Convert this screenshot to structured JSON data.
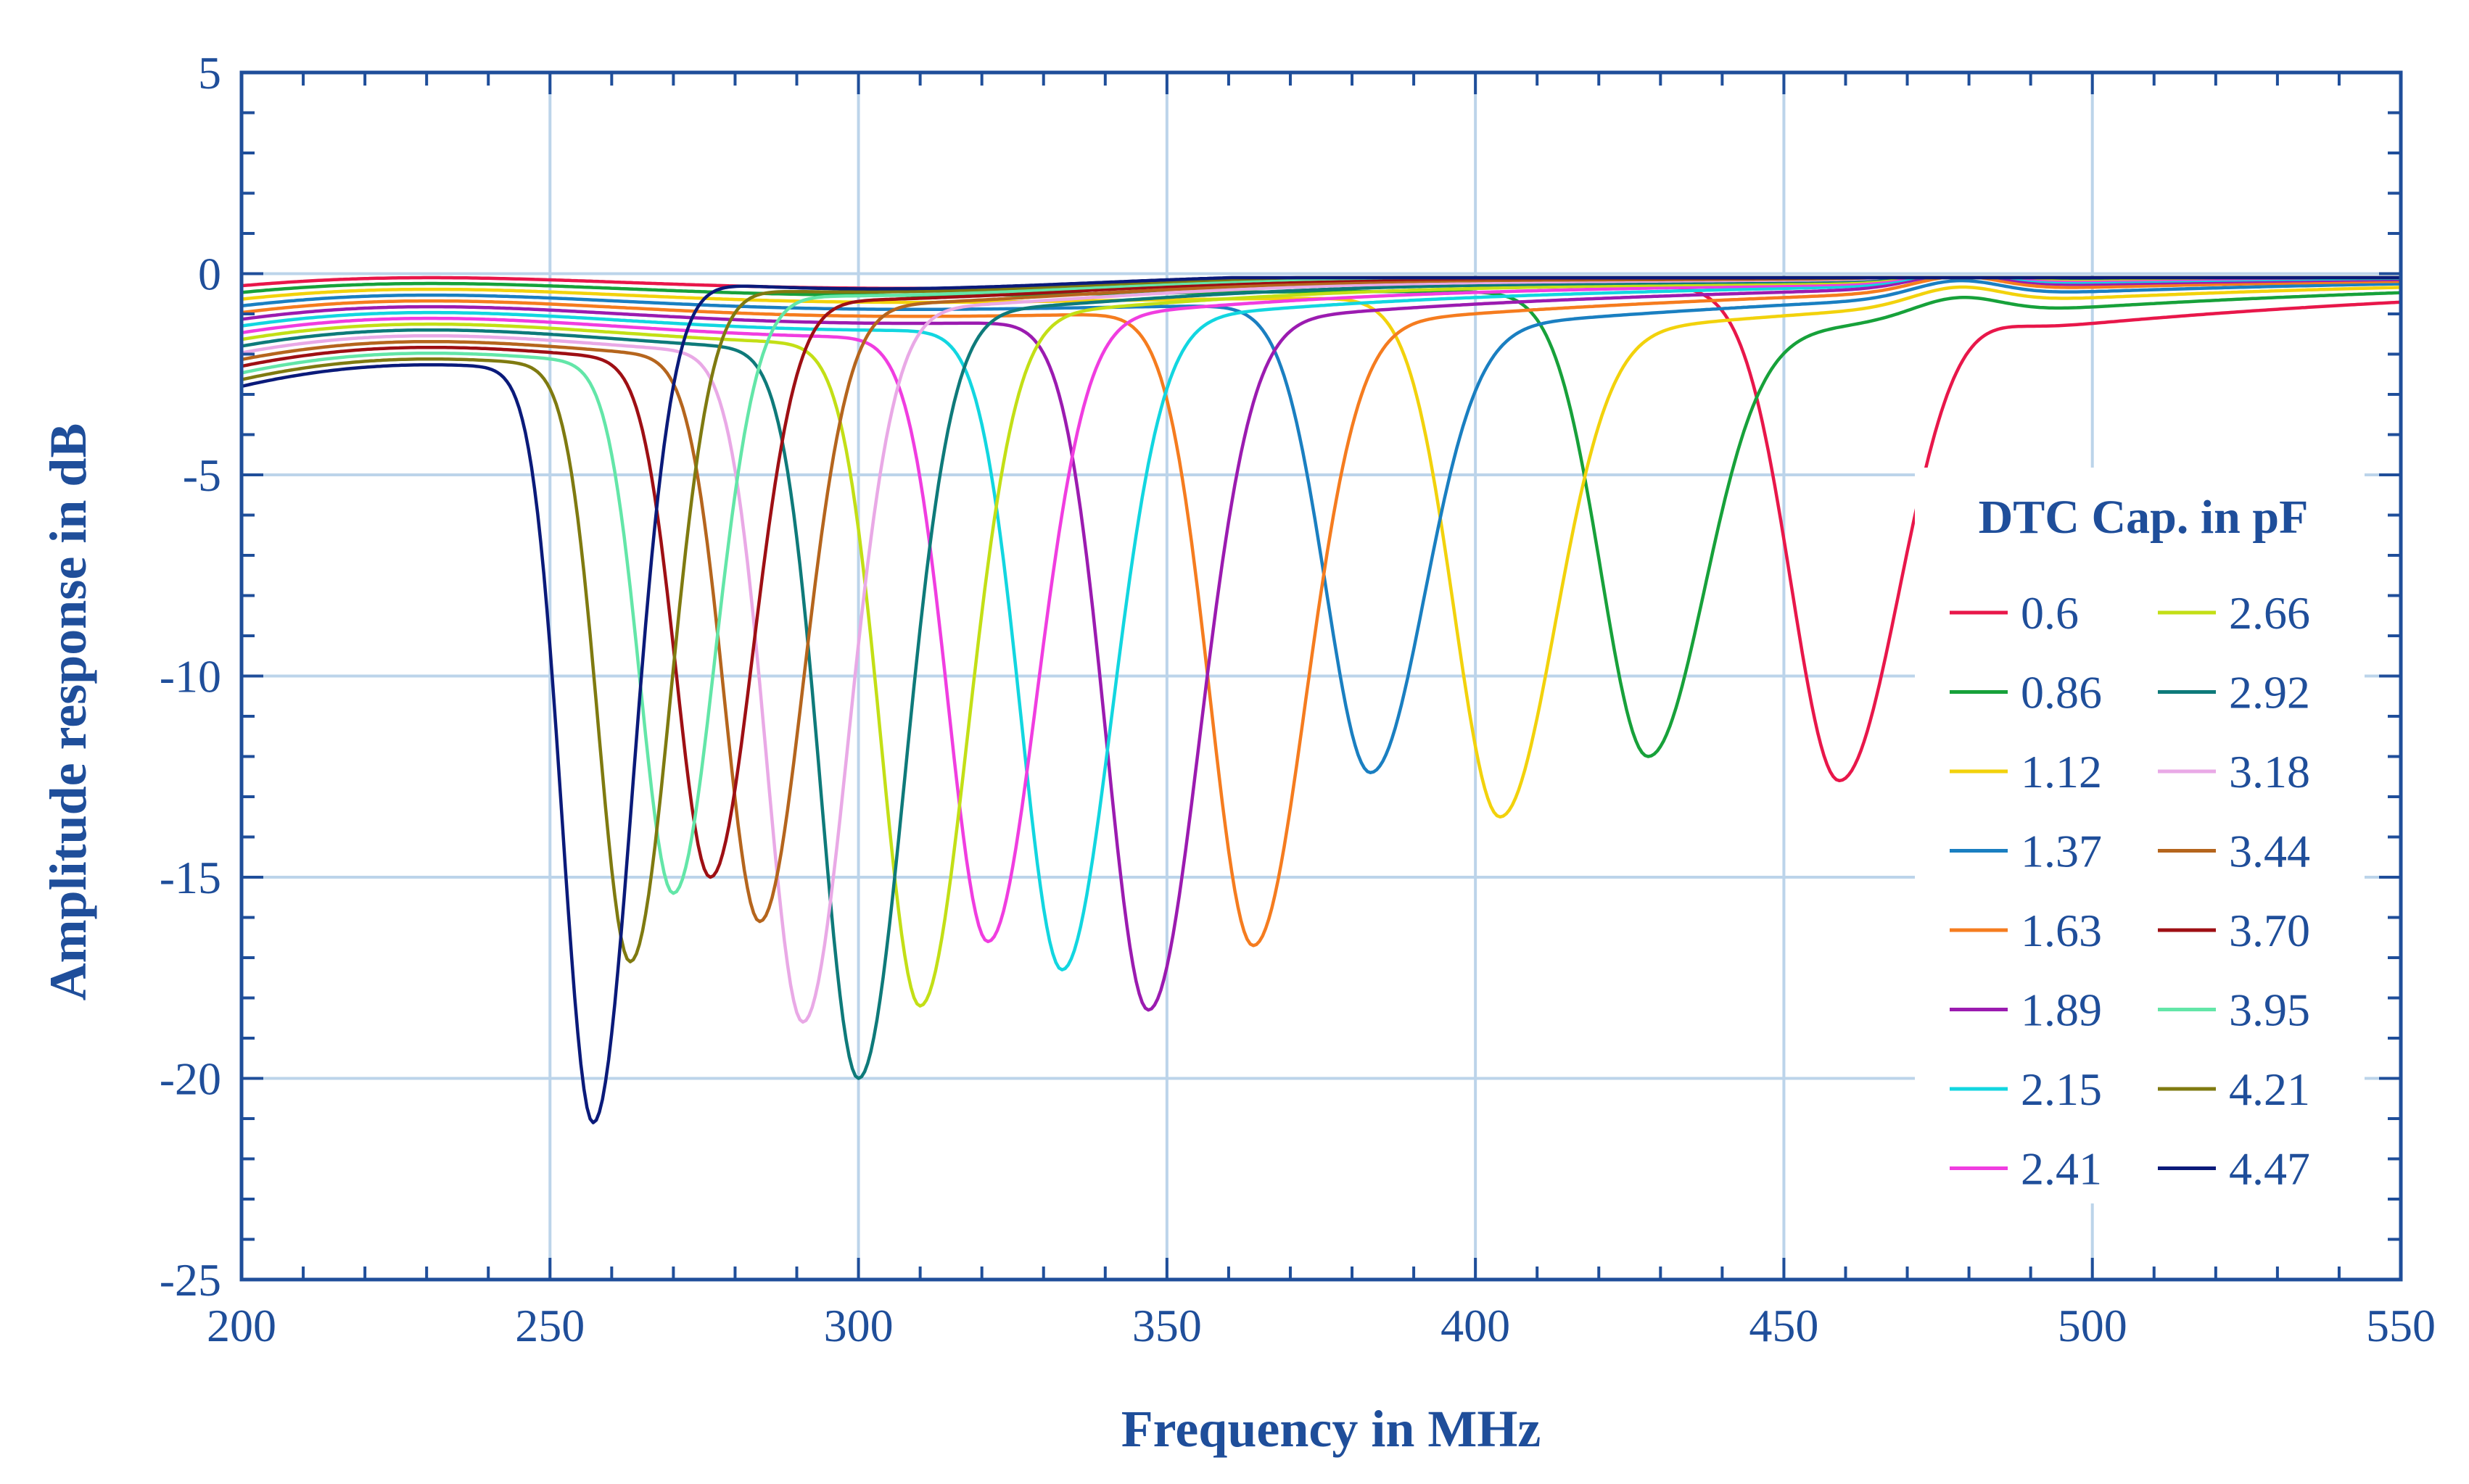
{
  "chart_data": {
    "type": "line",
    "title": "",
    "xlabel": "Frequency in MHz",
    "ylabel": "Amplitude response in dB",
    "xlim": [
      200,
      550
    ],
    "ylim": [
      -25,
      5
    ],
    "x_ticks": [
      200,
      250,
      300,
      350,
      400,
      450,
      500,
      550
    ],
    "x_tick_labels": [
      "200",
      "250",
      "300",
      "350",
      "400",
      "450",
      "500",
      "550"
    ],
    "y_ticks": [
      5,
      0,
      -5,
      -10,
      -15,
      -20,
      -25
    ],
    "y_tick_labels": [
      "5",
      "0",
      "-5",
      "-10",
      "-15",
      "-20",
      "-25"
    ],
    "grid": true,
    "legend": {
      "title": "DTC Cap. in pF",
      "placement": "right"
    },
    "series": [
      {
        "name": "0.6",
        "color": "#e8174a",
        "dip_freq": 459,
        "dip_depth": -12.6
      },
      {
        "name": "0.86",
        "color": "#17a13a",
        "dip_freq": 428,
        "dip_depth": -12.0
      },
      {
        "name": "1.12",
        "color": "#f2d20c",
        "dip_freq": 404,
        "dip_depth": -13.5
      },
      {
        "name": "1.37",
        "color": "#1a7fc1",
        "dip_freq": 383,
        "dip_depth": -12.4
      },
      {
        "name": "1.63",
        "color": "#f57c1f",
        "dip_freq": 364,
        "dip_depth": -16.7
      },
      {
        "name": "1.89",
        "color": "#9b1bb0",
        "dip_freq": 347,
        "dip_depth": -18.3
      },
      {
        "name": "2.15",
        "color": "#12d6e0",
        "dip_freq": 333,
        "dip_depth": -17.3
      },
      {
        "name": "2.41",
        "color": "#f03de0",
        "dip_freq": 321,
        "dip_depth": -16.6
      },
      {
        "name": "2.66",
        "color": "#c3df16",
        "dip_freq": 310,
        "dip_depth": -18.2
      },
      {
        "name": "2.92",
        "color": "#0e7a7a",
        "dip_freq": 300,
        "dip_depth": -20.0
      },
      {
        "name": "3.18",
        "color": "#e9a9e6",
        "dip_freq": 291,
        "dip_depth": -18.6
      },
      {
        "name": "3.44",
        "color": "#b5651d",
        "dip_freq": 284,
        "dip_depth": -16.1
      },
      {
        "name": "3.70",
        "color": "#9e0f14",
        "dip_freq": 276,
        "dip_depth": -15.0
      },
      {
        "name": "3.95",
        "color": "#63e6a8",
        "dip_freq": 270,
        "dip_depth": -15.4
      },
      {
        "name": "4.21",
        "color": "#7f7a10",
        "dip_freq": 263,
        "dip_depth": -17.1
      },
      {
        "name": "4.47",
        "color": "#0a1a7a",
        "dip_freq": 257,
        "dip_depth": -21.1
      }
    ]
  }
}
